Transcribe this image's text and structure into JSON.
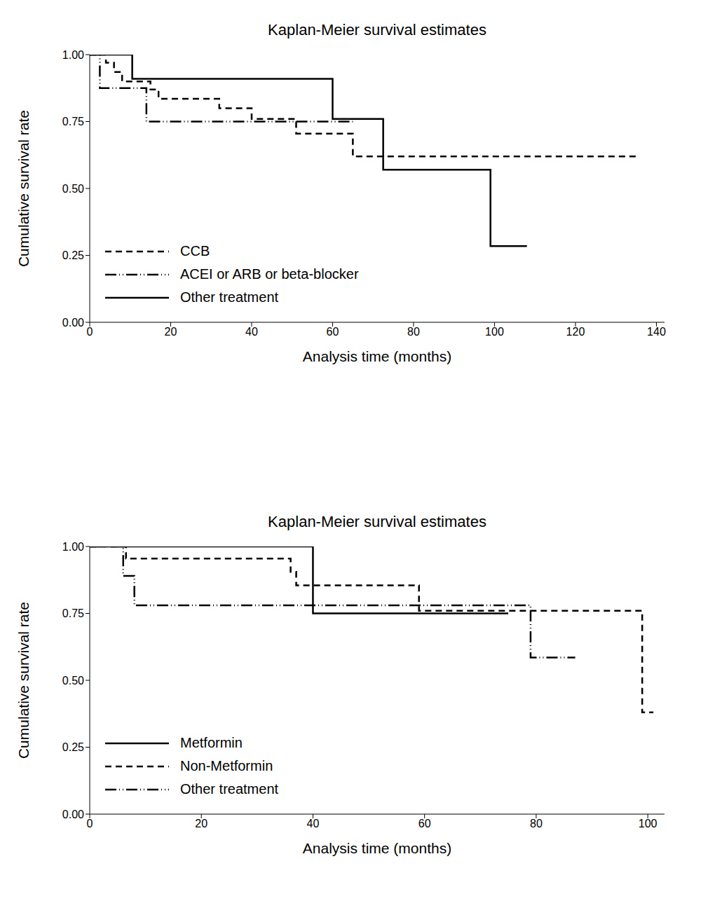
{
  "chart_data": [
    {
      "type": "step",
      "title": "Kaplan-Meier survival estimates",
      "x_label": "Analysis time (months)",
      "y_label": "Cumulative survival rate",
      "xlim": [
        0,
        142
      ],
      "xticks": [
        0,
        20,
        40,
        60,
        80,
        100,
        120,
        140
      ],
      "ylim": [
        0,
        1
      ],
      "yticks": [
        {
          "value": 0,
          "label": "0.00"
        },
        {
          "value": 0.25,
          "label": "0.25"
        },
        {
          "value": 0.5,
          "label": "0.50"
        },
        {
          "value": 0.75,
          "label": "0.75"
        },
        {
          "value": 1,
          "label": "1.00"
        }
      ],
      "grid": false,
      "legend": "lower left",
      "series": [
        {
          "name": "CCB",
          "color": "#000000",
          "line_style": "dashed",
          "x": [
            0,
            4,
            6,
            8,
            15,
            17,
            32,
            40,
            51,
            65,
            135
          ],
          "values": [
            1.0,
            0.97,
            0.935,
            0.9,
            0.87,
            0.835,
            0.8,
            0.76,
            0.705,
            0.62,
            0.62
          ]
        },
        {
          "name": "ACEI or ARB or beta-blocker",
          "color": "#000000",
          "line_style": "dashdotdot",
          "x": [
            0,
            2.5,
            14,
            65
          ],
          "values": [
            1.0,
            0.875,
            0.75,
            0.75
          ]
        },
        {
          "name": "Other treatment",
          "color": "#000000",
          "line_style": "solid",
          "x": [
            0,
            10.5,
            60,
            72.5,
            99,
            108
          ],
          "values": [
            1.0,
            0.91,
            0.76,
            0.57,
            0.285,
            0.285
          ]
        }
      ]
    },
    {
      "type": "step",
      "title": "Kaplan-Meier survival estimates",
      "x_label": "Analysis time (months)",
      "y_label": "Cumulative survival rate",
      "xlim": [
        0,
        103
      ],
      "xticks": [
        0,
        20,
        40,
        60,
        80,
        100
      ],
      "ylim": [
        0,
        1
      ],
      "yticks": [
        {
          "value": 0,
          "label": "0.00"
        },
        {
          "value": 0.25,
          "label": "0.25"
        },
        {
          "value": 0.5,
          "label": "0.50"
        },
        {
          "value": 0.75,
          "label": "0.75"
        },
        {
          "value": 1,
          "label": "1.00"
        }
      ],
      "grid": false,
      "legend": "lower left",
      "series": [
        {
          "name": "Metformin",
          "color": "#000000",
          "line_style": "solid",
          "x": [
            0,
            40,
            75
          ],
          "values": [
            1.0,
            0.75,
            0.75
          ]
        },
        {
          "name": "Non-Metformin",
          "color": "#000000",
          "line_style": "dashed",
          "x": [
            0,
            6.5,
            36,
            37,
            59,
            99,
            101
          ],
          "values": [
            1.0,
            0.955,
            0.905,
            0.855,
            0.76,
            0.38,
            0.38
          ]
        },
        {
          "name": "Other treatment",
          "color": "#000000",
          "line_style": "dashdotdot",
          "x": [
            0,
            6,
            8,
            79,
            87
          ],
          "values": [
            1.0,
            0.89,
            0.78,
            0.585,
            0.585
          ]
        }
      ]
    }
  ]
}
